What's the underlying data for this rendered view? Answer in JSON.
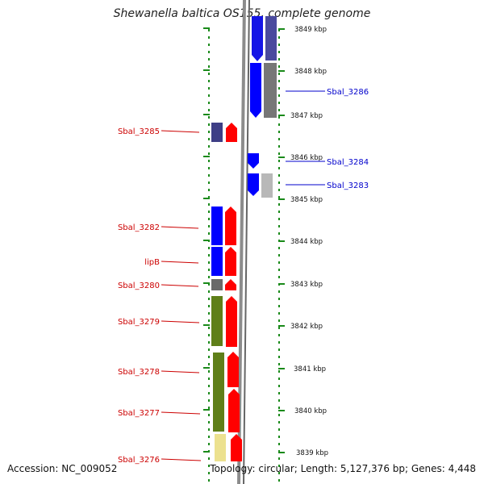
{
  "title": "Shewanella baltica OS155, complete genome",
  "accession_text": "Accession: NC_009052",
  "topology_text": "Topology: circular; Length: 5,127,376 bp; Genes: 4,448",
  "colors": {
    "forward_strand": "#ff0000",
    "reverse_strand": "#0000ff",
    "ruler_dashes": "#1a8a1a",
    "left_labels": "#cc0000",
    "right_labels": "#0000cc"
  },
  "ruler_labels": [
    "3849 kbp",
    "3848 kbp",
    "3847 kbp",
    "3846 kbp",
    "3845 kbp",
    "3844 kbp",
    "3843 kbp",
    "3842 kbp",
    "3841 kbp",
    "3840 kbp",
    "3839 kbp"
  ],
  "genes_left": [
    "Sbal_3285",
    "Sbal_3282",
    "lipB",
    "Sbal_3280",
    "Sbal_3279",
    "Sbal_3278",
    "Sbal_3277",
    "Sbal_3276"
  ],
  "genes_right": [
    "Sbal_3286",
    "Sbal_3284",
    "Sbal_3283"
  ]
}
